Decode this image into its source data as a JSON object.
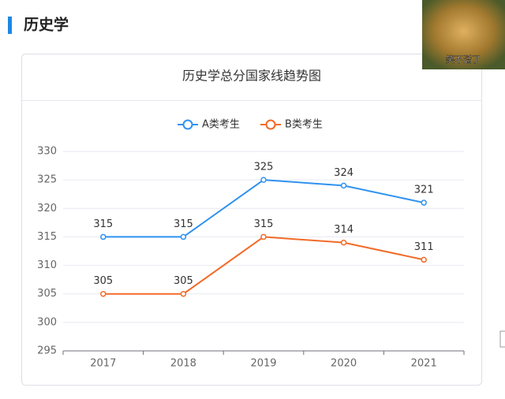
{
  "header": {
    "title": "历史学"
  },
  "sticker": {
    "caption": "笑不活了"
  },
  "chart_data": {
    "type": "line",
    "title": "历史学总分国家线趋势图",
    "categories": [
      "2017",
      "2018",
      "2019",
      "2020",
      "2021"
    ],
    "series": [
      {
        "name": "A类考生",
        "color": "#2f92f0",
        "values": [
          315,
          315,
          325,
          324,
          321
        ]
      },
      {
        "name": "B类考生",
        "color": "#f26a28",
        "values": [
          305,
          305,
          315,
          314,
          311
        ]
      }
    ],
    "ylim": [
      295,
      330
    ],
    "yticks": [
      295,
      300,
      305,
      310,
      315,
      320,
      325,
      330
    ],
    "grid": true,
    "legend": "top"
  }
}
